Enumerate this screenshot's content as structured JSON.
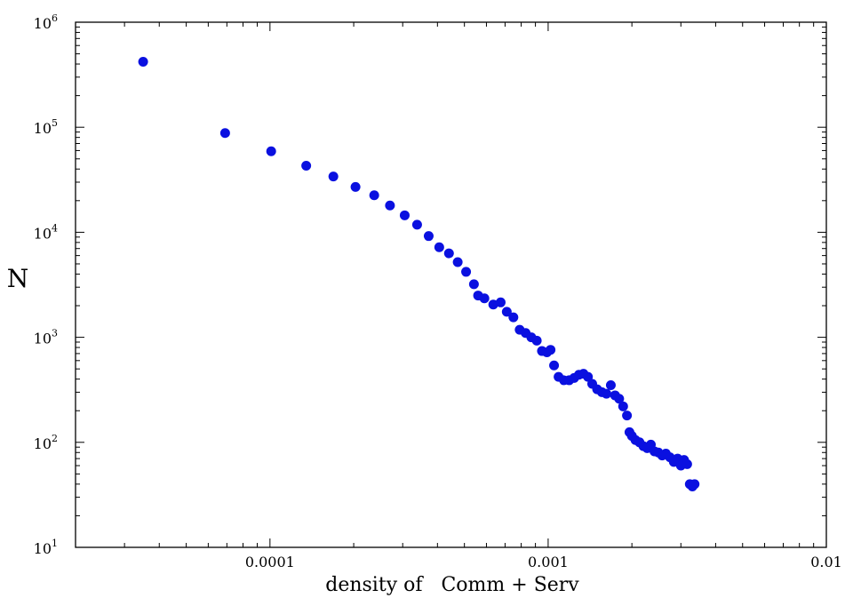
{
  "chart_data": {
    "type": "scatter",
    "xlabel": "density of   Comm + Serv",
    "ylabel": "N",
    "x_scale": "log",
    "y_scale": "log",
    "xlim": [
      2e-05,
      0.01
    ],
    "ylim": [
      10,
      1000000
    ],
    "grid": false,
    "legend": "none",
    "x_ticks": [
      {
        "value": 0.0001,
        "label": "0.0001"
      },
      {
        "value": 0.001,
        "label": "0.001"
      },
      {
        "value": 0.01,
        "label": "0.01"
      }
    ],
    "y_ticks": [
      {
        "value": 10,
        "base": "10",
        "exp": "1"
      },
      {
        "value": 100,
        "base": "10",
        "exp": "2"
      },
      {
        "value": 1000,
        "base": "10",
        "exp": "3"
      },
      {
        "value": 10000,
        "base": "10",
        "exp": "4"
      },
      {
        "value": 100000,
        "base": "10",
        "exp": "5"
      },
      {
        "value": 1000000,
        "base": "10",
        "exp": "6"
      }
    ],
    "marker_color": "#0a10e0",
    "series": [
      {
        "points": [
          [
            3.5e-05,
            420000
          ],
          [
            6.9e-05,
            88000
          ],
          [
            0.000101,
            59000
          ],
          [
            0.000135,
            43000
          ],
          [
            0.000169,
            34000
          ],
          [
            0.000203,
            27000
          ],
          [
            0.000237,
            22500
          ],
          [
            0.00027,
            18000
          ],
          [
            0.000305,
            14500
          ],
          [
            0.000338,
            11800
          ],
          [
            0.000372,
            9200
          ],
          [
            0.000406,
            7200
          ],
          [
            0.00044,
            6300
          ],
          [
            0.000473,
            5200
          ],
          [
            0.000507,
            4200
          ],
          [
            0.000541,
            3200
          ],
          [
            0.00056,
            2500
          ],
          [
            0.00059,
            2350
          ],
          [
            0.000635,
            2050
          ],
          [
            0.000675,
            2150
          ],
          [
            0.00071,
            1750
          ],
          [
            0.00075,
            1550
          ],
          [
            0.00079,
            1180
          ],
          [
            0.00083,
            1100
          ],
          [
            0.00087,
            1000
          ],
          [
            0.00091,
            930
          ],
          [
            0.00095,
            740
          ],
          [
            0.00099,
            720
          ],
          [
            0.00102,
            760
          ],
          [
            0.00105,
            540
          ],
          [
            0.00109,
            420
          ],
          [
            0.00114,
            390
          ],
          [
            0.00119,
            390
          ],
          [
            0.00124,
            410
          ],
          [
            0.00129,
            440
          ],
          [
            0.00134,
            450
          ],
          [
            0.00139,
            420
          ],
          [
            0.00144,
            360
          ],
          [
            0.0015,
            320
          ],
          [
            0.00156,
            300
          ],
          [
            0.00162,
            290
          ],
          [
            0.00168,
            350
          ],
          [
            0.00174,
            280
          ],
          [
            0.0018,
            260
          ],
          [
            0.00186,
            220
          ],
          [
            0.00192,
            180
          ],
          [
            0.00196,
            125
          ],
          [
            0.002,
            115
          ],
          [
            0.00206,
            105
          ],
          [
            0.00213,
            100
          ],
          [
            0.0022,
            92
          ],
          [
            0.00227,
            88
          ],
          [
            0.00234,
            95
          ],
          [
            0.00241,
            82
          ],
          [
            0.00249,
            80
          ],
          [
            0.00257,
            75
          ],
          [
            0.00265,
            78
          ],
          [
            0.00274,
            72
          ],
          [
            0.00283,
            65
          ],
          [
            0.00292,
            70
          ],
          [
            0.003,
            60
          ],
          [
            0.00308,
            68
          ],
          [
            0.00316,
            62
          ],
          [
            0.00323,
            40
          ],
          [
            0.0033,
            38
          ],
          [
            0.00336,
            40
          ]
        ]
      }
    ]
  }
}
